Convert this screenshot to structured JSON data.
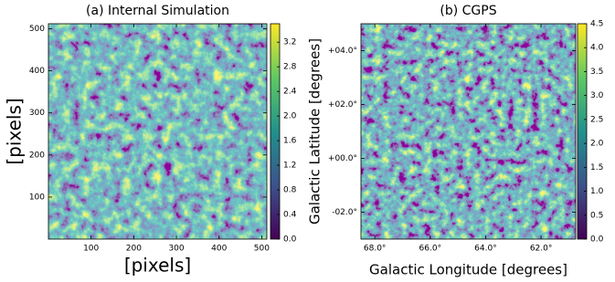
{
  "chart_data": [
    {
      "type": "heatmap",
      "title": "(a) Internal Simulation",
      "xlabel": "[pixels]",
      "ylabel": "[pixels]",
      "xlim": [
        0,
        512
      ],
      "ylim": [
        0,
        512
      ],
      "xticks": [
        100,
        200,
        300,
        400,
        500
      ],
      "yticks": [
        100,
        200,
        300,
        400,
        500
      ],
      "colorbar": {
        "lim": [
          0,
          3.5
        ],
        "ticks": [
          {
            "value": 0,
            "label": "0.0"
          },
          0.4,
          0.8,
          1.2,
          1.6,
          {
            "value": 2,
            "label": "2.0"
          },
          2.4,
          2.8,
          3.2
        ]
      }
    },
    {
      "type": "heatmap",
      "title": "(b) CGPS",
      "xlabel": "Galactic Longitude [degrees]",
      "ylabel": "Galactic Latitude [degrees]",
      "xlim": [
        68.5,
        60.75
      ],
      "ylim": [
        -3,
        5
      ],
      "xticks": [
        {
          "value": 68,
          "label": "68.0°"
        },
        {
          "value": 66,
          "label": "66.0°"
        },
        {
          "value": 64,
          "label": "64.0°"
        },
        {
          "value": 62,
          "label": "62.0°"
        }
      ],
      "yticks": [
        {
          "value": 4,
          "label": "+04.0°"
        },
        {
          "value": 2,
          "label": "+02.0°"
        },
        {
          "value": 0,
          "label": "+00.0°"
        },
        {
          "value": -2,
          "label": "-02.0°"
        }
      ],
      "colorbar": {
        "lim": [
          0,
          4.5
        ],
        "ticks": [
          {
            "value": 0,
            "label": "0.0"
          },
          0.5,
          {
            "value": 1,
            "label": "1.0"
          },
          1.5,
          {
            "value": 2,
            "label": "2.0"
          },
          2.5,
          {
            "value": 3,
            "label": "3.0"
          },
          3.5,
          {
            "value": 4,
            "label": "4.0"
          },
          4.5
        ]
      }
    }
  ]
}
